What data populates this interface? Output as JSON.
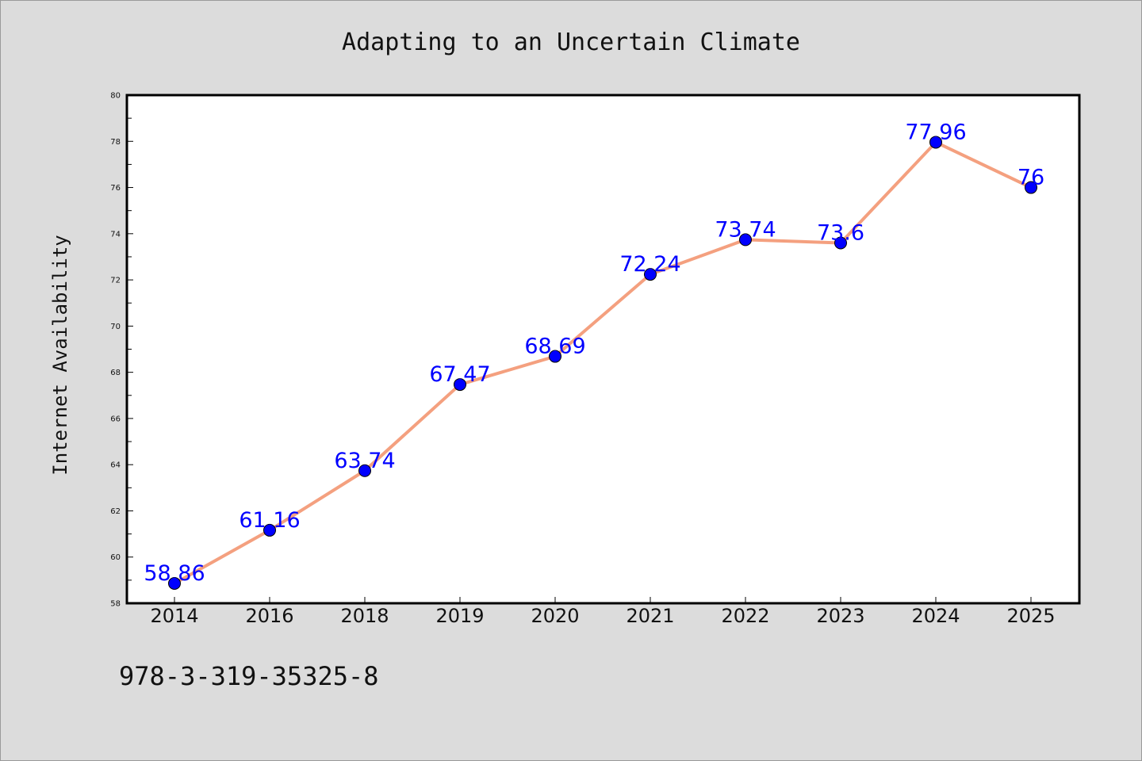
{
  "chart_data": {
    "type": "line",
    "title": "Adapting to an Uncertain Climate",
    "xlabel": "",
    "ylabel": "Internet Availability",
    "categories": [
      "2014",
      "2016",
      "2018",
      "2019",
      "2020",
      "2021",
      "2022",
      "2023",
      "2024",
      "2025"
    ],
    "series": [
      {
        "values": [
          58.86,
          61.16,
          63.74,
          67.47,
          68.69,
          72.24,
          73.74,
          73.6,
          77.96,
          76
        ],
        "labels": [
          "58.86",
          "61.16",
          "63.74",
          "67.47",
          "68.69",
          "72.24",
          "73.74",
          "73.6",
          "77.96",
          "76"
        ],
        "line_color": "#f4a07f",
        "marker_color": "#0000ff"
      }
    ],
    "ylim": [
      58,
      80
    ],
    "yticks": [
      "58",
      "60",
      "62",
      "64",
      "66",
      "68",
      "70",
      "72",
      "74",
      "76",
      "78",
      "80"
    ],
    "grid": false,
    "legend": "none",
    "background_color": "#dcdcdc",
    "plot_background_color": "#ffffff",
    "label_color": "#0000ff"
  },
  "footer": {
    "text": "978-3-319-35325-8"
  }
}
